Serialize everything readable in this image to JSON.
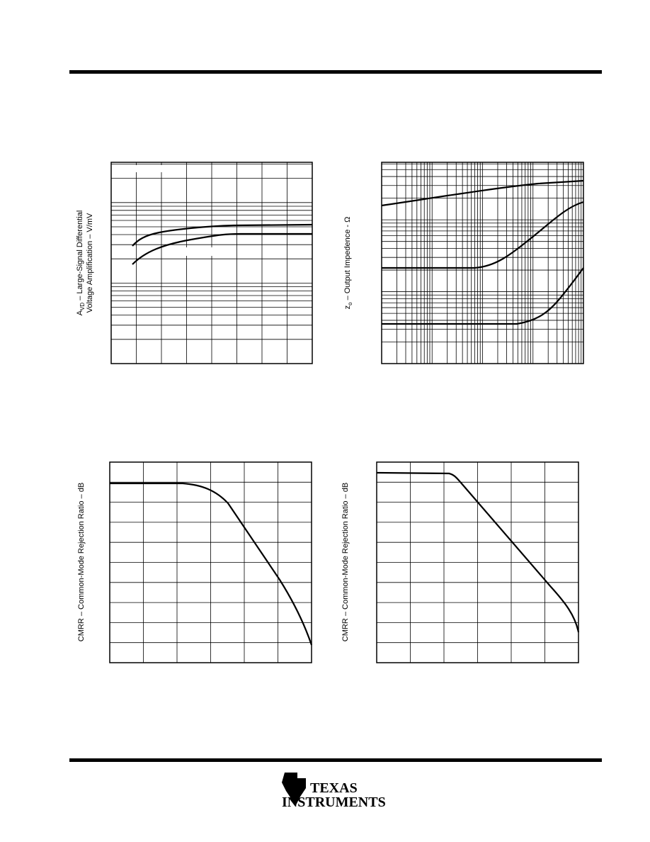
{
  "charts": [
    {
      "ylabel": {
        "symbol": "A",
        "sub": "VD",
        "rest": " – Large-Signal Differential",
        "line2": "Voltage Amplification – V/mV"
      }
    },
    {
      "ylabel": {
        "symbol": "z",
        "sub": "o",
        "rest": " – Output Impedence - Ω"
      }
    },
    {
      "ylabel": {
        "text": "CMRR – Common-Mode Rejection Ratio – dB"
      }
    },
    {
      "ylabel": {
        "text": "CMRR – Common-Mode Rejection Ratio – dB"
      }
    }
  ],
  "footer": {
    "logo_line1": "TEXAS",
    "logo_line2": "INSTRUMENTS"
  }
}
